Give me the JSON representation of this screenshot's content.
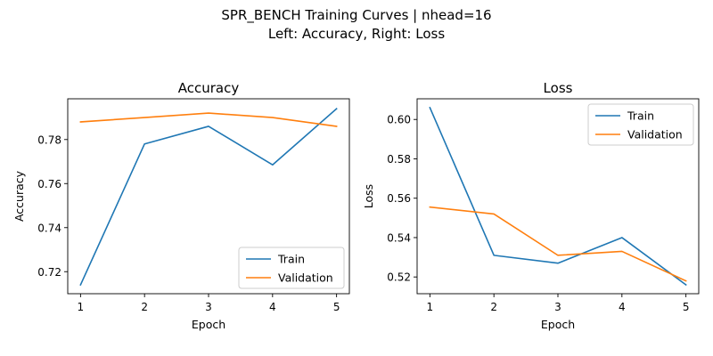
{
  "suptitle_line1": "SPR_BENCH Training Curves | nhead=16",
  "suptitle_line2": "Left: Accuracy, Right: Loss",
  "colors": {
    "train": "#1f77b4",
    "validation": "#ff7f0e"
  },
  "chart_data": [
    {
      "type": "line",
      "title": "Accuracy",
      "xlabel": "Epoch",
      "ylabel": "Accuracy",
      "x": [
        1,
        2,
        3,
        4,
        5
      ],
      "xticks": [
        1,
        2,
        3,
        4,
        5
      ],
      "xlim": [
        0.8,
        5.2
      ],
      "yticks": [
        0.72,
        0.74,
        0.76,
        0.78
      ],
      "ytick_labels": [
        "0.72",
        "0.74",
        "0.76",
        "0.78"
      ],
      "ylim": [
        0.71,
        0.7985
      ],
      "grid": false,
      "legend_position": "lower right",
      "series": [
        {
          "name": "Train",
          "color": "#1f77b4",
          "values": [
            0.714,
            0.778,
            0.786,
            0.7685,
            0.794
          ]
        },
        {
          "name": "Validation",
          "color": "#ff7f0e",
          "values": [
            0.788,
            0.79,
            0.792,
            0.79,
            0.786
          ]
        }
      ]
    },
    {
      "type": "line",
      "title": "Loss",
      "xlabel": "Epoch",
      "ylabel": "Loss",
      "x": [
        1,
        2,
        3,
        4,
        5
      ],
      "xticks": [
        1,
        2,
        3,
        4,
        5
      ],
      "xlim": [
        0.8,
        5.2
      ],
      "yticks": [
        0.52,
        0.54,
        0.56,
        0.58,
        0.6
      ],
      "ytick_labels": [
        "0.52",
        "0.54",
        "0.56",
        "0.58",
        "0.60"
      ],
      "ylim": [
        0.5115,
        0.6105
      ],
      "grid": false,
      "legend_position": "upper right",
      "series": [
        {
          "name": "Train",
          "color": "#1f77b4",
          "values": [
            0.606,
            0.531,
            0.527,
            0.54,
            0.516
          ]
        },
        {
          "name": "Validation",
          "color": "#ff7f0e",
          "values": [
            0.5555,
            0.552,
            0.531,
            0.533,
            0.518
          ]
        }
      ]
    }
  ]
}
